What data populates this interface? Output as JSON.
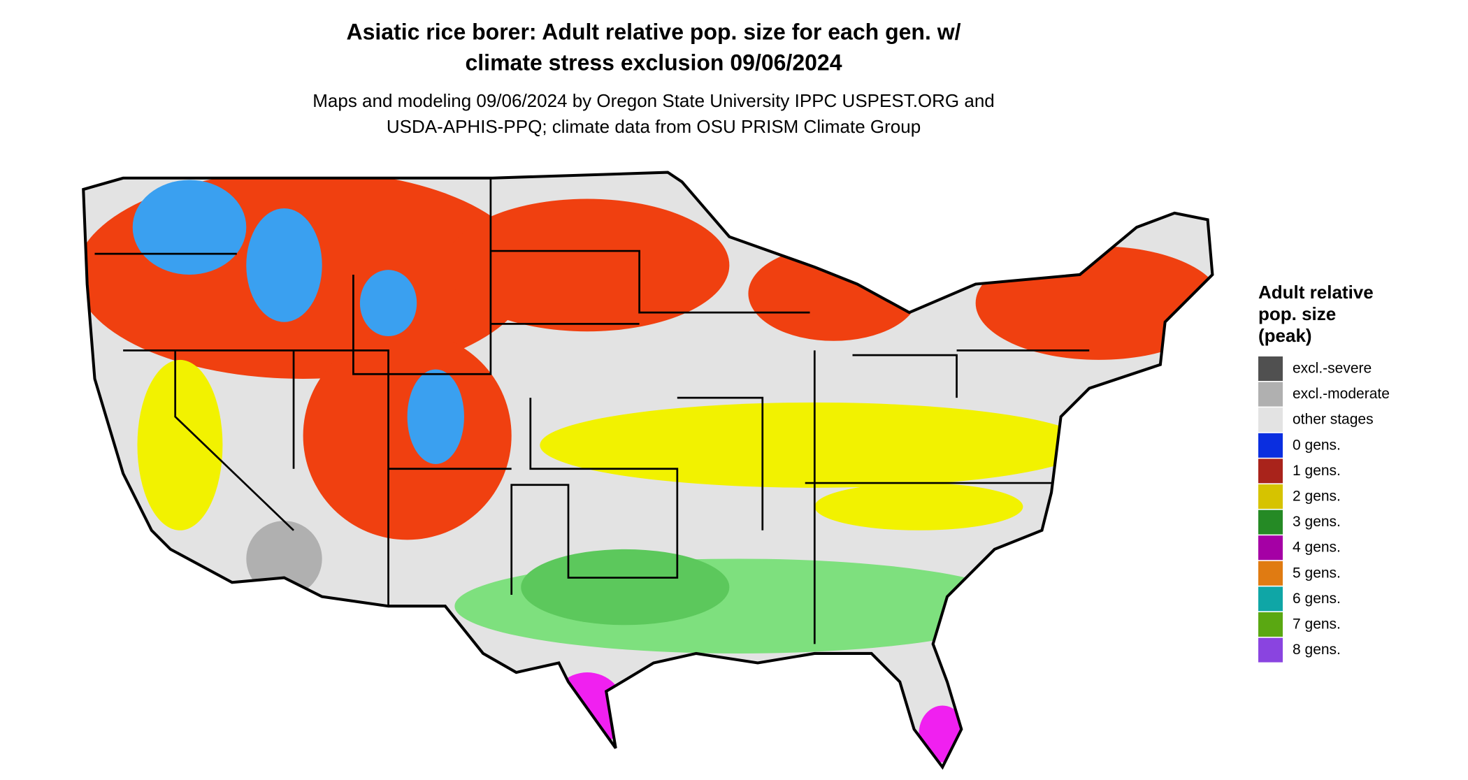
{
  "title": [
    "Asiatic rice borer: Adult relative pop. size for each gen. w/",
    "climate stress exclusion 09/06/2024"
  ],
  "subtitle": [
    "Maps and modeling 09/06/2024 by Oregon State University IPPC USPEST.ORG and",
    "USDA-APHIS-PPQ; climate data from OSU PRISM Climate Group"
  ],
  "legend": {
    "title": [
      "Adult relative",
      "pop. size",
      "(peak)"
    ],
    "items": [
      {
        "label": "excl.-severe",
        "color": "#505050"
      },
      {
        "label": "excl.-moderate",
        "color": "#b0b0b0"
      },
      {
        "label": "other stages",
        "color": "#e3e3e3"
      },
      {
        "label": "0 gens.",
        "color": "#0a2ee0"
      },
      {
        "label": "1 gens.",
        "color": "#a9231b"
      },
      {
        "label": "2 gens.",
        "color": "#d6c300"
      },
      {
        "label": "3 gens.",
        "color": "#258a25"
      },
      {
        "label": "4 gens.",
        "color": "#a500a5"
      },
      {
        "label": "5 gens.",
        "color": "#e07b12"
      },
      {
        "label": "6 gens.",
        "color": "#0fa6a6"
      },
      {
        "label": "7 gens.",
        "color": "#5aa812"
      },
      {
        "label": "8 gens.",
        "color": "#8a44e0"
      }
    ]
  }
}
